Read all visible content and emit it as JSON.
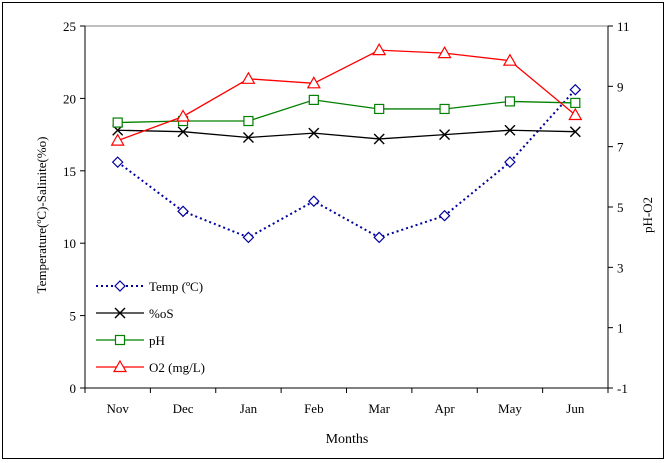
{
  "chart_data": {
    "type": "line",
    "title": "",
    "xlabel": "Months",
    "ylabel_left": "Temperature(ºC)-Salinite(%o)",
    "ylabel_right": "pH-O2",
    "categories": [
      "Nov",
      "Dec",
      "Jan",
      "Feb",
      "Mar",
      "Apr",
      "May",
      "Jun"
    ],
    "y_left": {
      "min": 0,
      "max": 25,
      "ticks": [
        0,
        5,
        10,
        15,
        20,
        25
      ]
    },
    "y_right": {
      "min": -1,
      "max": 11,
      "ticks": [
        -1,
        1,
        3,
        5,
        7,
        9,
        11
      ]
    },
    "grid": false,
    "legend_position": "bottom-left",
    "series": [
      {
        "name": "Temp (ºC)",
        "axis": "left",
        "color": "#0000a0",
        "marker": "diamond",
        "dashed": true,
        "values": [
          15.6,
          12.2,
          10.4,
          12.9,
          10.4,
          11.9,
          15.6,
          20.6
        ]
      },
      {
        "name": "%oS",
        "axis": "left",
        "color": "#000000",
        "marker": "x",
        "dashed": false,
        "values": [
          17.8,
          17.7,
          17.3,
          17.6,
          17.2,
          17.5,
          17.8,
          17.7
        ]
      },
      {
        "name": "pH",
        "axis": "right",
        "color": "#008000",
        "marker": "square",
        "dashed": false,
        "values": [
          7.8,
          7.85,
          7.85,
          8.55,
          8.25,
          8.25,
          8.5,
          8.45
        ]
      },
      {
        "name": "O2 (mg/L)",
        "axis": "right",
        "color": "#ff0000",
        "marker": "triangle",
        "dashed": false,
        "values": [
          7.2,
          8.0,
          9.25,
          9.1,
          10.2,
          10.1,
          9.85,
          8.05
        ]
      }
    ]
  }
}
